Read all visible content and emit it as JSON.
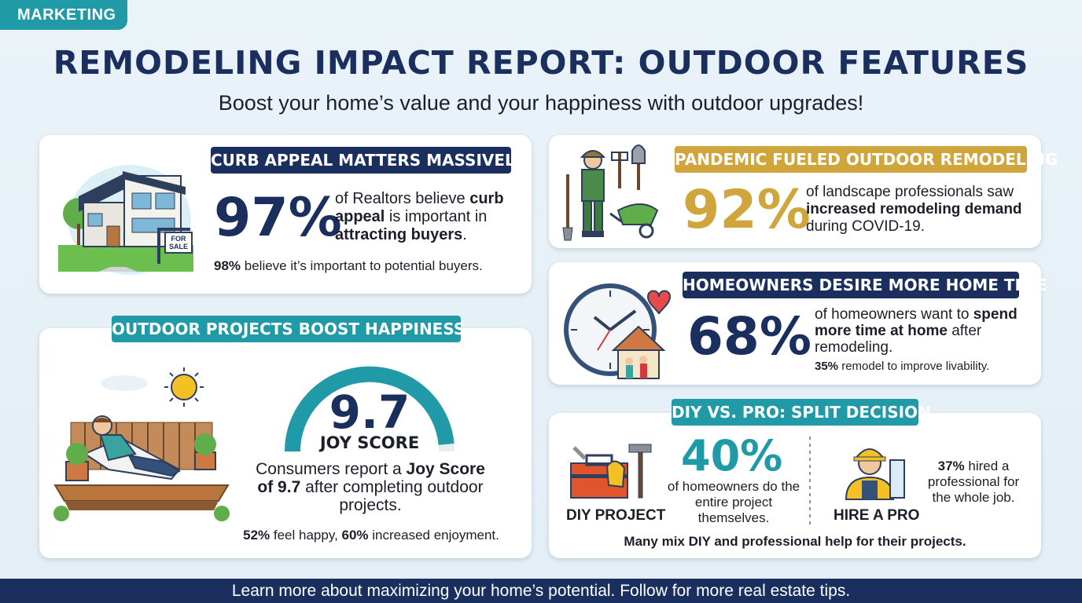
{
  "tag": "MARKETING",
  "title": "REMODELING IMPACT REPORT: OUTDOOR FEATURES",
  "subtitle": "Boost your home’s value and your happiness with outdoor upgrades!",
  "curb": {
    "heading": "CURB APPEAL MATTERS MASSIVELY",
    "stat": "97%",
    "text_a": "of Realtors believe ",
    "text_b": "curb appeal",
    "text_c": " is important in ",
    "text_d": "attracting buyers",
    "text_e": ".",
    "sub_bold": "98%",
    "sub_rest": " believe it’s important to potential buyers.",
    "sign": "FOR SALE"
  },
  "happy": {
    "heading": "OUTDOOR PROJECTS BOOST HAPPINESS",
    "score": "9.7",
    "score_label": "JOY SCORE",
    "score_fraction": 0.97,
    "text_a": "Consumers report a ",
    "text_b": "Joy Score of 9.7",
    "text_c": " after completing outdoor projects.",
    "sub_a": "52%",
    "sub_b": " feel happy, ",
    "sub_c": "60%",
    "sub_d": " increased enjoyment."
  },
  "pandemic": {
    "heading": "PANDEMIC FUELED OUTDOOR REMODELING",
    "stat": "92%",
    "text_a": "of landscape professionals saw ",
    "text_b": "increased remodeling demand",
    "text_c": " during COVID-19."
  },
  "hometime": {
    "heading": "HOMEOWNERS DESIRE MORE HOME TIME",
    "stat": "68%",
    "text_a": "of homeowners want to ",
    "text_b": "spend more time at home",
    "text_c": " after remodeling.",
    "sub_bold": "35%",
    "sub_rest": " remodel to improve livability."
  },
  "diy": {
    "heading": "DIY VS. PRO: SPLIT DECISION",
    "stat": "40%",
    "stat_text": "of homeowners do the entire project themselves.",
    "diy_label": "DIY PROJECT",
    "pro_label": "HIRE A PRO",
    "pro_bold": "37%",
    "pro_text": " hired a professional for the whole job.",
    "footer_note": "Many mix DIY and professional help for their projects."
  },
  "footer": "Learn more about maximizing your home’s potential. Follow for more real estate tips.",
  "colors": {
    "navy": "#1b2f5e",
    "teal": "#1f9aa6",
    "gold": "#d0a53c"
  },
  "icons": [
    "house-icon",
    "gardener-icon",
    "clock-house-icon",
    "relaxing-deck-icon",
    "toolbox-icon",
    "contractor-icon"
  ]
}
